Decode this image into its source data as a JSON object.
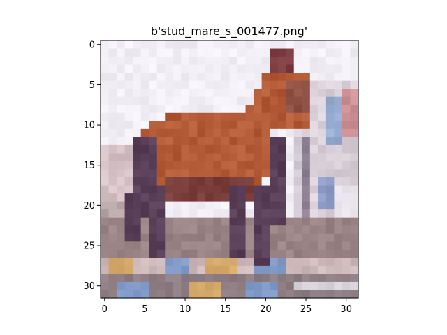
{
  "figure": {
    "title": "b'stud_mare_s_001477.png'"
  },
  "chart_data": {
    "type": "image",
    "title": "b'stud_mare_s_001477.png'",
    "image_size": [
      32,
      32
    ],
    "x_ticks": [
      0,
      5,
      10,
      15,
      20,
      25,
      30
    ],
    "y_ticks": [
      0,
      5,
      10,
      15,
      20,
      25,
      30
    ],
    "xlim": [
      -0.5,
      31.5
    ],
    "ylim": [
      31.5,
      -0.5
    ],
    "grid": false,
    "content": "pixelated photo of a brown horse standing on a pen ground",
    "colors": {
      "sky": "#f1eef5",
      "horse_body": "#b35a36",
      "horse_dark": "#5a3f58",
      "ground": "#9a8384",
      "fence_blue": "#7f98c6",
      "fence_gold": "#d4a868"
    }
  }
}
